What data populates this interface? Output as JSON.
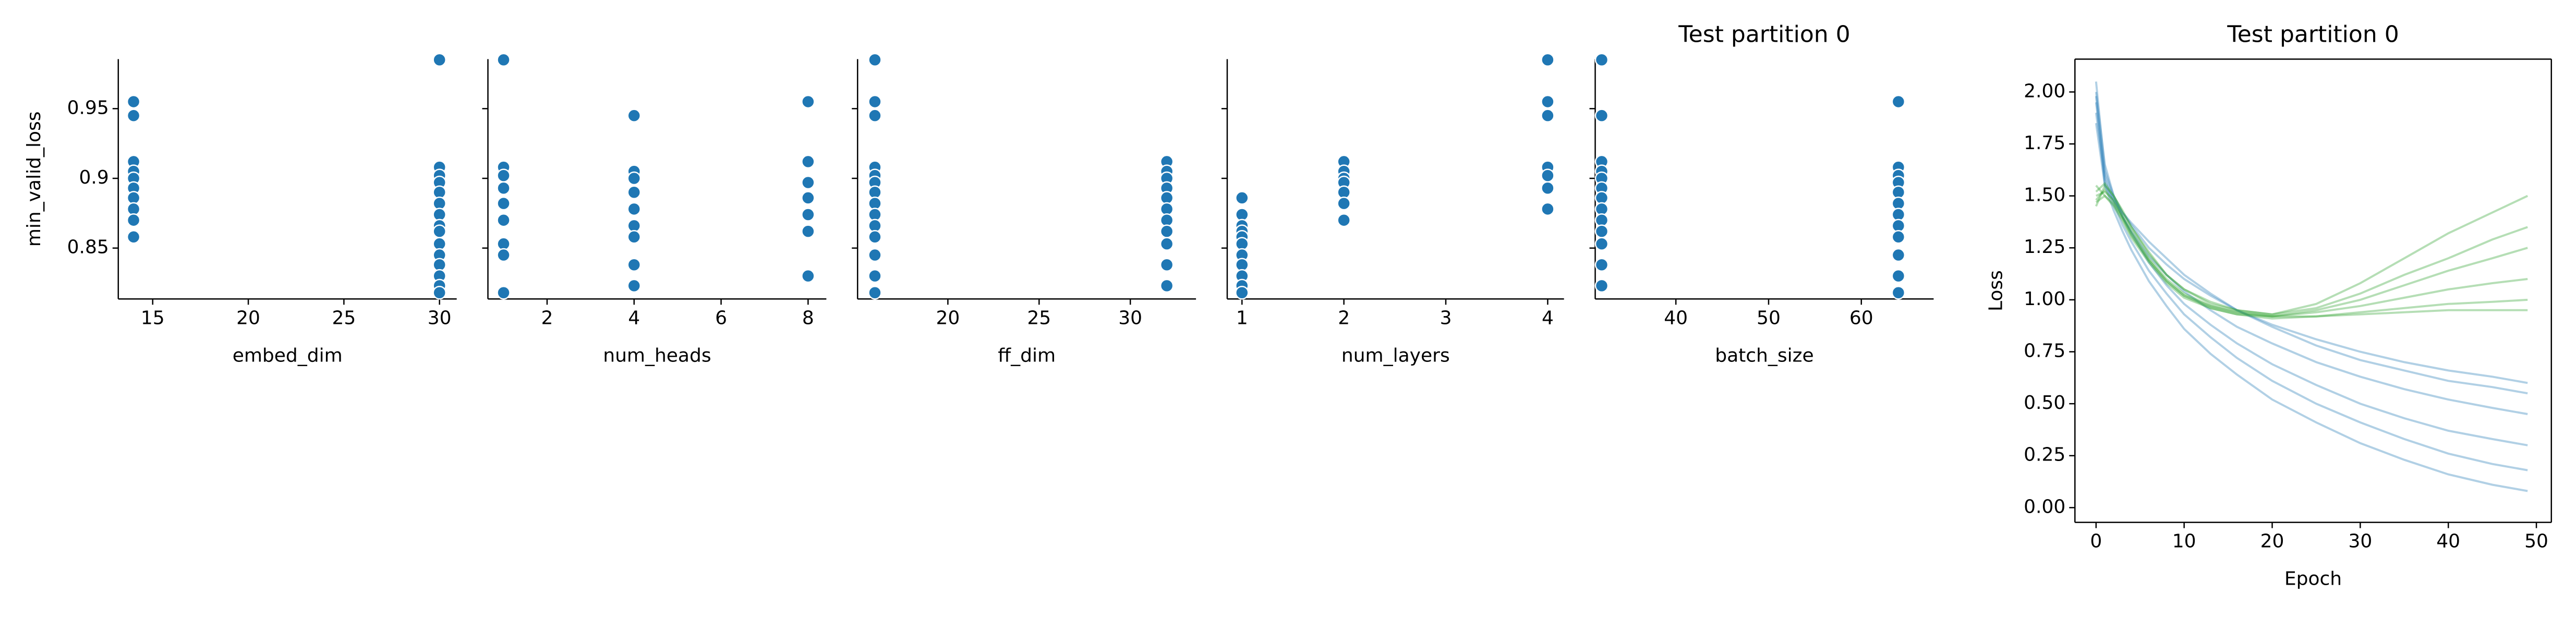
{
  "chart_data": [
    {
      "type": "scatter",
      "xlabel": "embed_dim",
      "ylabel": "min_valid_loss",
      "color": "#1f77b4",
      "x": [
        30,
        14,
        14,
        14,
        30,
        14,
        30,
        14,
        30,
        14,
        30,
        14,
        30,
        14,
        30,
        14,
        30,
        30,
        14,
        30,
        30,
        30,
        30,
        30,
        30
      ],
      "values": [
        0.985,
        0.955,
        0.945,
        0.912,
        0.908,
        0.905,
        0.902,
        0.9,
        0.897,
        0.893,
        0.89,
        0.886,
        0.882,
        0.878,
        0.874,
        0.87,
        0.866,
        0.862,
        0.858,
        0.853,
        0.845,
        0.838,
        0.83,
        0.823,
        0.818
      ],
      "xlim": [
        13.2,
        30.9
      ],
      "xticks": [
        15,
        20,
        25,
        30
      ],
      "ylim": [
        0.8135,
        0.9855
      ],
      "yticks": [
        0.85,
        0.9,
        0.95
      ]
    },
    {
      "type": "scatter",
      "xlabel": "num_heads",
      "color": "#1f77b4",
      "x": [
        1,
        8,
        4,
        8,
        1,
        4,
        1,
        4,
        8,
        1,
        4,
        8,
        1,
        4,
        8,
        1,
        4,
        8,
        4,
        1,
        1,
        4,
        8,
        4,
        1
      ],
      "values": [
        0.985,
        0.955,
        0.945,
        0.912,
        0.908,
        0.905,
        0.902,
        0.9,
        0.897,
        0.893,
        0.89,
        0.886,
        0.882,
        0.878,
        0.874,
        0.87,
        0.866,
        0.862,
        0.858,
        0.853,
        0.845,
        0.838,
        0.83,
        0.823,
        0.818
      ],
      "xlim": [
        0.64,
        8.42
      ],
      "xticks": [
        2,
        4,
        6,
        8
      ]
    },
    {
      "type": "scatter",
      "xlabel": "ff_dim",
      "color": "#1f77b4",
      "x": [
        16,
        16,
        16,
        32,
        16,
        32,
        16,
        32,
        16,
        32,
        16,
        32,
        16,
        32,
        16,
        32,
        16,
        32,
        16,
        32,
        16,
        32,
        16,
        32,
        16
      ],
      "values": [
        0.985,
        0.955,
        0.945,
        0.912,
        0.908,
        0.905,
        0.902,
        0.9,
        0.897,
        0.893,
        0.89,
        0.886,
        0.882,
        0.878,
        0.874,
        0.87,
        0.866,
        0.862,
        0.858,
        0.853,
        0.845,
        0.838,
        0.83,
        0.823,
        0.818
      ],
      "xlim": [
        15.05,
        33.6
      ],
      "xticks": [
        20,
        25,
        30
      ]
    },
    {
      "type": "scatter",
      "xlabel": "num_layers",
      "color": "#1f77b4",
      "x": [
        4,
        4,
        4,
        2,
        4,
        2,
        4,
        2,
        2,
        4,
        2,
        1,
        2,
        4,
        1,
        2,
        1,
        1,
        1,
        1,
        1,
        1,
        1,
        1,
        1
      ],
      "values": [
        0.985,
        0.955,
        0.945,
        0.912,
        0.908,
        0.905,
        0.902,
        0.9,
        0.897,
        0.893,
        0.89,
        0.886,
        0.882,
        0.878,
        0.874,
        0.87,
        0.866,
        0.862,
        0.858,
        0.853,
        0.845,
        0.838,
        0.83,
        0.823,
        0.818
      ],
      "xlim": [
        0.855,
        4.16
      ],
      "xticks": [
        1,
        2,
        3,
        4
      ]
    },
    {
      "type": "scatter",
      "title": "Test partition 0",
      "xlabel": "batch_size",
      "color": "#1f77b4",
      "x": [
        32,
        64,
        32,
        32,
        64,
        32,
        64,
        32,
        64,
        32,
        64,
        32,
        64,
        32,
        64,
        32,
        64,
        32,
        64,
        32,
        64,
        32,
        64,
        32,
        64
      ],
      "values": [
        0.985,
        0.955,
        0.945,
        0.912,
        0.908,
        0.905,
        0.902,
        0.9,
        0.897,
        0.893,
        0.89,
        0.886,
        0.882,
        0.878,
        0.874,
        0.87,
        0.866,
        0.862,
        0.858,
        0.853,
        0.845,
        0.838,
        0.83,
        0.823,
        0.818
      ],
      "xlim": [
        31.3,
        67.8
      ],
      "xticks": [
        40,
        50,
        60
      ]
    },
    {
      "type": "line",
      "title": "Test partition 0",
      "xlabel": "Epoch",
      "ylabel": "Loss",
      "x": [
        0,
        1,
        2,
        3,
        4,
        6,
        8,
        10,
        13,
        16,
        20,
        25,
        30,
        35,
        40,
        45,
        49
      ],
      "series": [
        {
          "color": "#1f77b4",
          "values": [
            2.0,
            1.65,
            1.5,
            1.42,
            1.36,
            1.25,
            1.17,
            1.1,
            1.02,
            0.95,
            0.88,
            0.81,
            0.75,
            0.7,
            0.66,
            0.63,
            0.6
          ]
        },
        {
          "color": "#1f77b4",
          "values": [
            1.95,
            1.6,
            1.48,
            1.4,
            1.33,
            1.21,
            1.12,
            1.04,
            0.95,
            0.87,
            0.79,
            0.7,
            0.63,
            0.57,
            0.52,
            0.48,
            0.45
          ]
        },
        {
          "color": "#1f77b4",
          "values": [
            2.05,
            1.62,
            1.5,
            1.4,
            1.32,
            1.18,
            1.07,
            0.98,
            0.88,
            0.79,
            0.69,
            0.59,
            0.5,
            0.43,
            0.37,
            0.33,
            0.3
          ]
        },
        {
          "color": "#1f77b4",
          "values": [
            1.9,
            1.58,
            1.46,
            1.36,
            1.28,
            1.14,
            1.03,
            0.93,
            0.82,
            0.72,
            0.61,
            0.5,
            0.41,
            0.33,
            0.26,
            0.21,
            0.18
          ]
        },
        {
          "color": "#1f77b4",
          "values": [
            1.98,
            1.55,
            1.43,
            1.33,
            1.24,
            1.09,
            0.97,
            0.86,
            0.74,
            0.64,
            0.52,
            0.41,
            0.31,
            0.23,
            0.16,
            0.11,
            0.08
          ]
        },
        {
          "color": "#1f77b4",
          "values": [
            1.85,
            1.55,
            1.48,
            1.42,
            1.37,
            1.28,
            1.2,
            1.12,
            1.03,
            0.95,
            0.87,
            0.78,
            0.71,
            0.66,
            0.61,
            0.58,
            0.55
          ]
        },
        {
          "color": "#2ca02c",
          "values": [
            1.45,
            1.55,
            1.5,
            1.42,
            1.35,
            1.22,
            1.12,
            1.05,
            0.98,
            0.95,
            0.93,
            0.98,
            1.08,
            1.2,
            1.32,
            1.42,
            1.5
          ]
        },
        {
          "color": "#2ca02c",
          "values": [
            1.5,
            1.52,
            1.48,
            1.4,
            1.33,
            1.2,
            1.1,
            1.03,
            0.97,
            0.94,
            0.92,
            0.95,
            1.0,
            1.07,
            1.14,
            1.2,
            1.25
          ]
        },
        {
          "color": "#2ca02c",
          "values": [
            1.55,
            1.5,
            1.45,
            1.38,
            1.3,
            1.18,
            1.08,
            1.01,
            0.96,
            0.93,
            0.91,
            0.92,
            0.94,
            0.96,
            0.98,
            0.99,
            1.0
          ]
        },
        {
          "color": "#2ca02c",
          "values": [
            1.48,
            1.53,
            1.47,
            1.4,
            1.32,
            1.19,
            1.09,
            1.02,
            0.96,
            0.93,
            0.92,
            0.92,
            0.93,
            0.94,
            0.95,
            0.95,
            0.95
          ]
        },
        {
          "color": "#2ca02c",
          "values": [
            1.52,
            1.56,
            1.5,
            1.43,
            1.35,
            1.23,
            1.12,
            1.05,
            0.99,
            0.95,
            0.93,
            0.96,
            1.03,
            1.12,
            1.2,
            1.29,
            1.35
          ]
        },
        {
          "color": "#2ca02c",
          "values": [
            1.47,
            1.5,
            1.46,
            1.39,
            1.31,
            1.19,
            1.09,
            1.02,
            0.97,
            0.94,
            0.92,
            0.94,
            0.97,
            1.01,
            1.05,
            1.08,
            1.1
          ]
        }
      ],
      "xlim": [
        -2.4,
        51.7
      ],
      "xticks": [
        0,
        10,
        20,
        30,
        40,
        50
      ],
      "ylim": [
        -0.071,
        2.158
      ],
      "yticks": [
        {
          "value": 0,
          "label": "0.00"
        },
        {
          "value": 0.25,
          "label": "0.25"
        },
        {
          "value": 0.5,
          "label": "0.50"
        },
        {
          "value": 0.75,
          "label": "0.75"
        },
        {
          "value": 1,
          "label": "1.00"
        },
        {
          "value": 1.25,
          "label": "1.25"
        },
        {
          "value": 1.5,
          "label": "1.50"
        },
        {
          "value": 1.75,
          "label": "1.75"
        },
        {
          "value": 2,
          "label": "2.00"
        }
      ]
    }
  ]
}
